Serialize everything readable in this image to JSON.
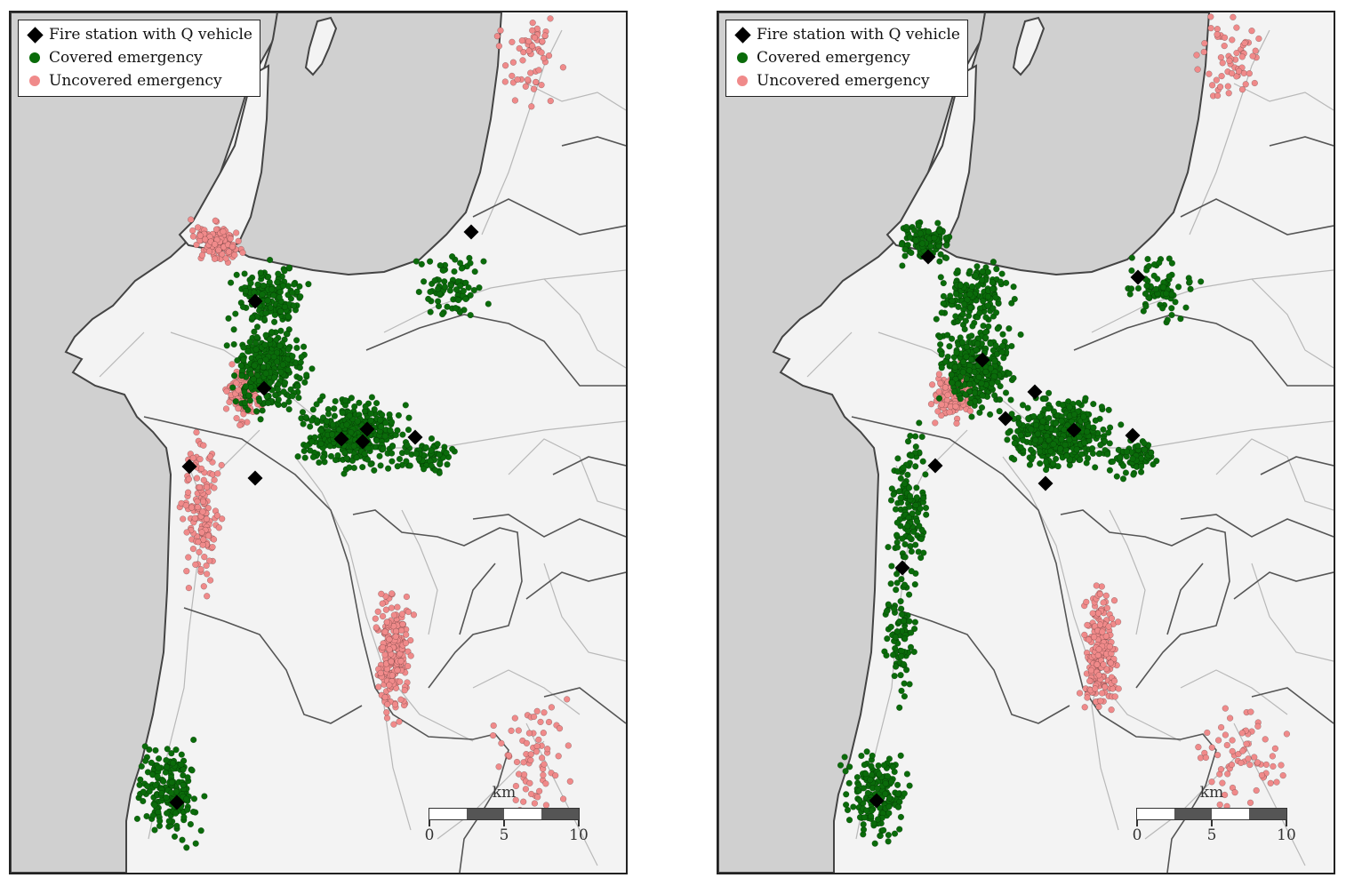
{
  "colors": {
    "land": "#f3f3f3",
    "water": "#d0d0d0",
    "coast": "#444444",
    "boundary": "#555555",
    "road": "#b8b8b8",
    "covered": "#0a6b0a",
    "uncovered": "#f08a8a",
    "station": "#000000",
    "scale_dark": "#555555",
    "scale_light": "#ffffff"
  },
  "legend": {
    "station_label": "Fire station with Q vehicle",
    "covered_label": "Covered emergency",
    "uncovered_label": "Uncovered emergency"
  },
  "scalebar": {
    "unit": "km",
    "tick_labels": [
      "0",
      "5",
      "10"
    ]
  },
  "panels": [
    {
      "id": "left",
      "stations": 10,
      "covered_clusters": [
        "central-west",
        "central-east",
        "north-west-suburb",
        "east-corridor",
        "north-east",
        "south-west-town"
      ],
      "uncovered_clusters": [
        "north-west-peninsula",
        "west-coast-strip",
        "south-valley",
        "far-south-east",
        "north-coast",
        "central-west-edge"
      ]
    },
    {
      "id": "right",
      "stations": 11,
      "covered_clusters": [
        "north-west-peninsula",
        "central-west",
        "central-east",
        "north-west-suburb",
        "east-corridor",
        "north-east",
        "west-coast-strip",
        "west-coast-mid",
        "south-west-town"
      ],
      "uncovered_clusters": [
        "south-valley",
        "far-south-east",
        "north-coast",
        "central-west-edge"
      ]
    }
  ]
}
